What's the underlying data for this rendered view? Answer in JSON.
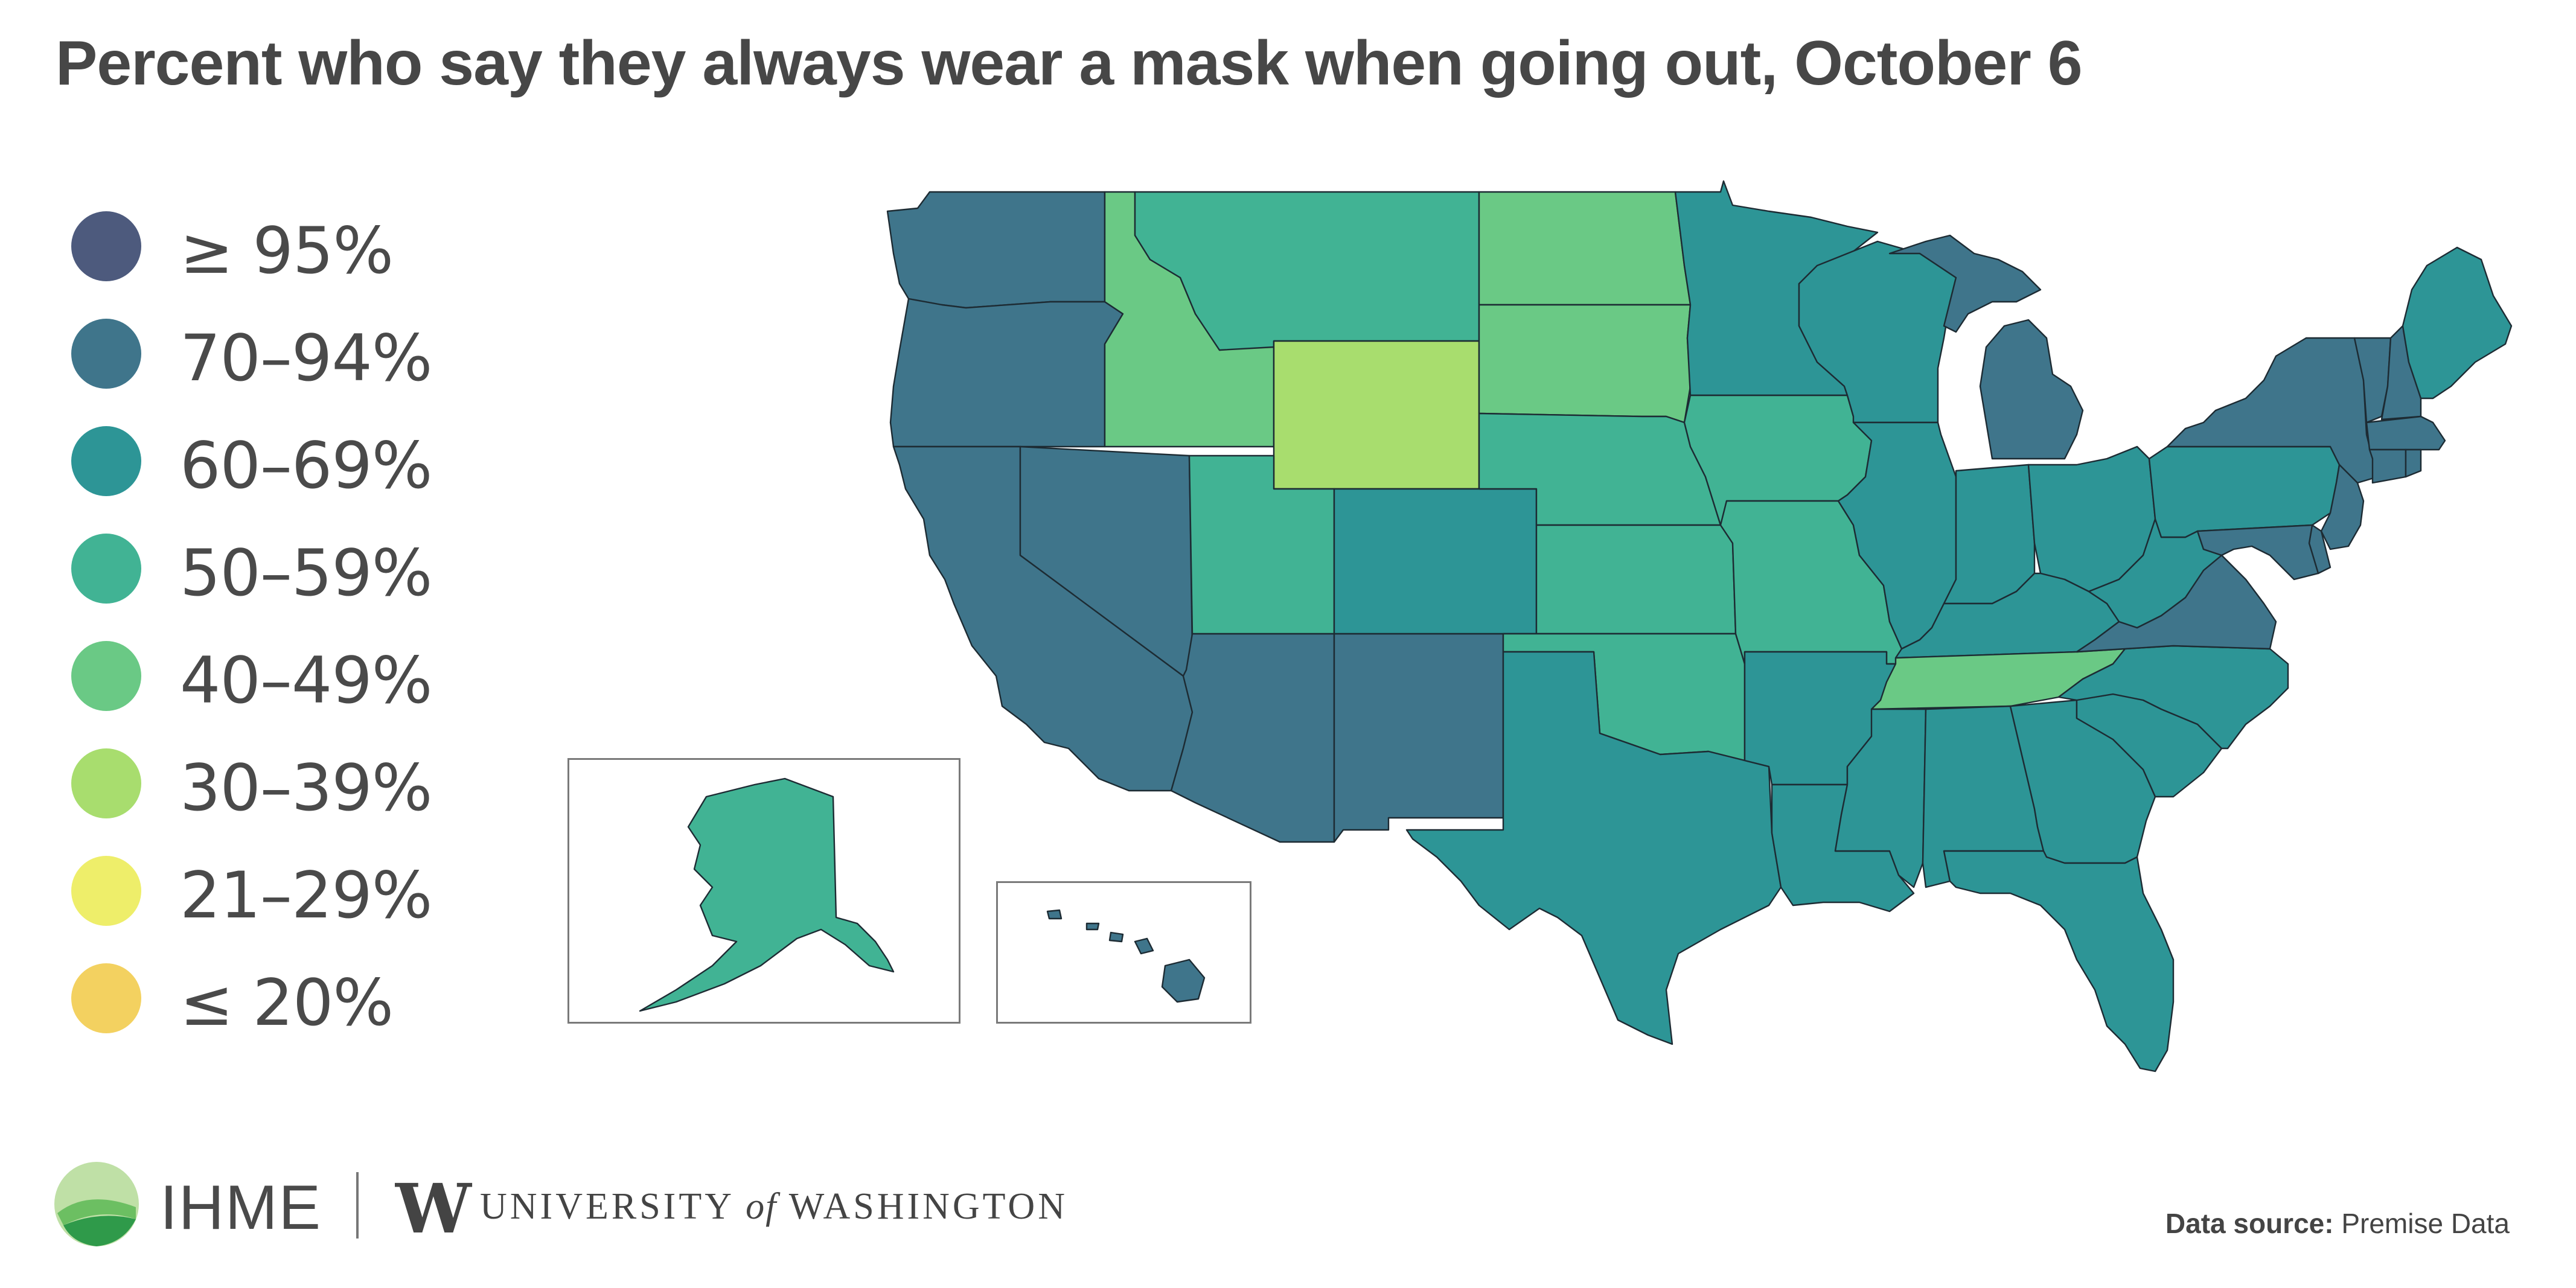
{
  "title": "Percent who say they always wear a mask when going out, October 6",
  "legend": [
    {
      "label": "≥ 95%",
      "color": "#4d5a7d"
    },
    {
      "label": "70–94%",
      "color": "#3f758b"
    },
    {
      "label": "60–69%",
      "color": "#2d9596"
    },
    {
      "label": "50–59%",
      "color": "#41b394"
    },
    {
      "label": "40–49%",
      "color": "#6ac985"
    },
    {
      "label": "30–39%",
      "color": "#a8dd6e"
    },
    {
      "label": "21–29%",
      "color": "#eeee6a"
    },
    {
      "label": "≤ 20%",
      "color": "#f3d160"
    }
  ],
  "map_data": {
    "regions": [
      {
        "name": "Washington",
        "category": "70–94%"
      },
      {
        "name": "Oregon",
        "category": "70–94%"
      },
      {
        "name": "California",
        "category": "70–94%"
      },
      {
        "name": "Nevada",
        "category": "70–94%"
      },
      {
        "name": "Arizona",
        "category": "70–94%"
      },
      {
        "name": "New Mexico",
        "category": "70–94%"
      },
      {
        "name": "Idaho",
        "category": "40–49%"
      },
      {
        "name": "Montana",
        "category": "50–59%"
      },
      {
        "name": "Wyoming",
        "category": "30–39%"
      },
      {
        "name": "Utah",
        "category": "50–59%"
      },
      {
        "name": "Colorado",
        "category": "60–69%"
      },
      {
        "name": "North Dakota",
        "category": "40–49%"
      },
      {
        "name": "South Dakota",
        "category": "40–49%"
      },
      {
        "name": "Nebraska",
        "category": "50–59%"
      },
      {
        "name": "Kansas",
        "category": "50–59%"
      },
      {
        "name": "Oklahoma",
        "category": "50–59%"
      },
      {
        "name": "Texas",
        "category": "60–69%"
      },
      {
        "name": "Minnesota",
        "category": "60–69%"
      },
      {
        "name": "Iowa",
        "category": "50–59%"
      },
      {
        "name": "Missouri",
        "category": "50–59%"
      },
      {
        "name": "Arkansas",
        "category": "60–69%"
      },
      {
        "name": "Louisiana",
        "category": "60–69%"
      },
      {
        "name": "Wisconsin",
        "category": "60–69%"
      },
      {
        "name": "Illinois",
        "category": "60–69%"
      },
      {
        "name": "Michigan",
        "category": "70–94%"
      },
      {
        "name": "Indiana",
        "category": "60–69%"
      },
      {
        "name": "Ohio",
        "category": "60–69%"
      },
      {
        "name": "Kentucky",
        "category": "60–69%"
      },
      {
        "name": "Tennessee",
        "category": "40–49%"
      },
      {
        "name": "Mississippi",
        "category": "60–69%"
      },
      {
        "name": "Alabama",
        "category": "60–69%"
      },
      {
        "name": "Georgia",
        "category": "60–69%"
      },
      {
        "name": "Florida",
        "category": "60–69%"
      },
      {
        "name": "South Carolina",
        "category": "60–69%"
      },
      {
        "name": "North Carolina",
        "category": "60–69%"
      },
      {
        "name": "Virginia",
        "category": "70–94%"
      },
      {
        "name": "West Virginia",
        "category": "60–69%"
      },
      {
        "name": "Pennsylvania",
        "category": "60–69%"
      },
      {
        "name": "New York",
        "category": "70–94%"
      },
      {
        "name": "Maine",
        "category": "60–69%"
      },
      {
        "name": "Vermont",
        "category": "70–94%"
      },
      {
        "name": "New Hampshire",
        "category": "70–94%"
      },
      {
        "name": "Massachusetts",
        "category": "70–94%"
      },
      {
        "name": "Connecticut",
        "category": "70–94%"
      },
      {
        "name": "Rhode Island",
        "category": "70–94%"
      },
      {
        "name": "New Jersey",
        "category": "70–94%"
      },
      {
        "name": "Delaware",
        "category": "70–94%"
      },
      {
        "name": "Maryland",
        "category": "70–94%"
      },
      {
        "name": "Alaska",
        "category": "50–59%"
      },
      {
        "name": "Hawaii",
        "category": "70–94%"
      }
    ]
  },
  "footer": {
    "ihme": "IHME",
    "uw_mark": "W",
    "uw_pre": "UNIVERSITY",
    "uw_of": "of",
    "uw_post": "WASHINGTON",
    "datasource_label": "Data source:",
    "datasource_value": "Premise Data"
  }
}
